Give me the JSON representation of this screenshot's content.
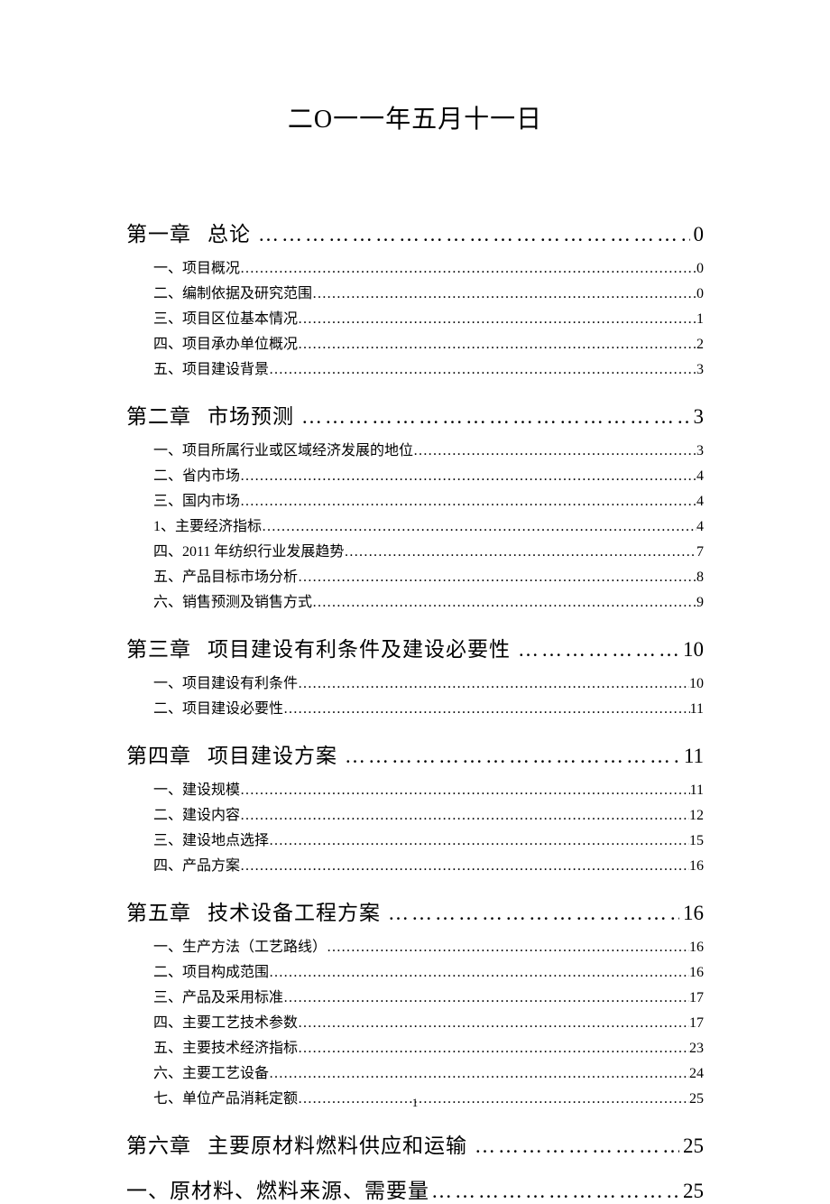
{
  "document": {
    "title": "二O一一年五月十一日",
    "watermark": "",
    "page_number": "1",
    "background_color": "#ffffff",
    "text_color": "#000000",
    "watermark_color": "#f3f3f3",
    "title_fontsize": 28,
    "chapter_fontsize": 23,
    "sub_fontsize": 16,
    "chapters": [
      {
        "label": "第一章",
        "title": "总论",
        "page": "0",
        "subs": [
          {
            "label": "一、项目概况",
            "page": "0"
          },
          {
            "label": "二、编制依据及研究范围",
            "page": "0"
          },
          {
            "label": "三、项目区位基本情况",
            "page": "1"
          },
          {
            "label": "四、项目承办单位概况",
            "page": "2"
          },
          {
            "label": "五、项目建设背景",
            "page": "3"
          }
        ]
      },
      {
        "label": "第二章",
        "title": "市场预测",
        "page": "3",
        "subs": [
          {
            "label": "一、项目所属行业或区域经济发展的地位",
            "page": "3"
          },
          {
            "label": "二、省内市场",
            "page": "4"
          },
          {
            "label": "三、国内市场",
            "page": "4"
          },
          {
            "label": "1、主要经济指标",
            "page": "4"
          },
          {
            "label": "四、2011 年纺织行业发展趋势",
            "page": "7"
          },
          {
            "label": "五、产品目标市场分析",
            "page": "8"
          },
          {
            "label": "六、销售预测及销售方式",
            "page": "9"
          }
        ]
      },
      {
        "label": "第三章",
        "title": "项目建设有利条件及建设必要性",
        "page": "10",
        "subs": [
          {
            "label": "一、项目建设有利条件",
            "page": "10"
          },
          {
            "label": "二、项目建设必要性",
            "page": "11"
          }
        ]
      },
      {
        "label": "第四章",
        "title": "项目建设方案",
        "page": "11",
        "subs": [
          {
            "label": "一、建设规模",
            "page": "11"
          },
          {
            "label": "二、建设内容",
            "page": "12"
          },
          {
            "label": "三、建设地点选择",
            "page": "15"
          },
          {
            "label": "四、产品方案",
            "page": "16"
          }
        ]
      },
      {
        "label": "第五章",
        "title": "技术设备工程方案",
        "page": "16",
        "subs": [
          {
            "label": "一、生产方法（工艺路线）",
            "page": "16"
          },
          {
            "label": "二、项目构成范围",
            "page": "16"
          },
          {
            "label": "三、产品及采用标准",
            "page": "17"
          },
          {
            "label": "四、主要工艺技术参数",
            "page": "17"
          },
          {
            "label": "五、主要技术经济指标",
            "page": "23"
          },
          {
            "label": "六、主要工艺设备",
            "page": "24"
          },
          {
            "label": "七、单位产品消耗定额",
            "page": "25"
          }
        ]
      },
      {
        "label": "第六章",
        "title": "主要原材料燃料供应和运输",
        "page": "25",
        "subs": []
      }
    ],
    "chapter_alt": {
      "label": "一、原材料、燃料来源、需要量",
      "page": "25"
    }
  }
}
